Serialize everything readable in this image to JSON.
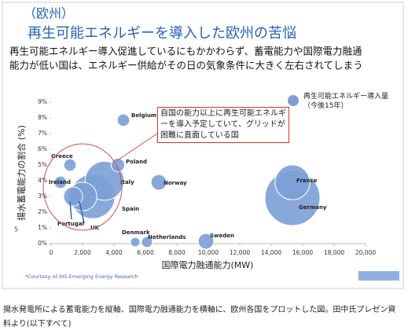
{
  "header": {
    "region": "（欧州）",
    "title": "再生可能エネルギーを導入した欧州の苦悩",
    "subtitle_lines": [
      "再生可能エネルギー導入促進しているにもかかわらず、蓄電能力や国際電力融通",
      "能力が低い国は、エネルギー供給がその日の気象条件に大きく左右されてしまう"
    ]
  },
  "chart_data": {
    "type": "bubble",
    "x_label": "国際電力融通能力(MW)",
    "y_label": "揚水蓄電能力の割合 (%)",
    "annotation": "自国の能力以上に再生可能エネルギーを導入予定していて、グリッドが困難に直面している国",
    "source": "*Courtesy of IHS Emerging Energy Research",
    "xlim": [
      0,
      20000
    ],
    "ylim": [
      0,
      9
    ],
    "xticks": [
      0,
      {
        "value": 2000,
        "label": "2,000"
      },
      {
        "value": 4000,
        "label": "4,000"
      },
      {
        "value": 6000,
        "label": "6,000"
      },
      {
        "value": 8000,
        "label": "8,000"
      },
      {
        "value": 10000,
        "label": "10,000"
      },
      {
        "value": 12000,
        "label": "12,000"
      },
      {
        "value": 14000,
        "label": "14,000"
      },
      {
        "value": 16000,
        "label": "16,000"
      },
      {
        "value": 18000,
        "label": "18,000"
      },
      {
        "value": 20000,
        "label": "20,000"
      }
    ],
    "yticks": [
      {
        "value": 0,
        "label": "0%"
      },
      {
        "value": 1,
        "label": "1%"
      },
      {
        "value": 2,
        "label": "2%"
      },
      {
        "value": 3,
        "label": "3%"
      },
      {
        "value": 4,
        "label": "4%"
      },
      {
        "value": 5,
        "label": "5%"
      },
      {
        "value": 6,
        "label": "6%"
      },
      {
        "value": 7,
        "label": "7%"
      },
      {
        "value": 8,
        "label": "8%"
      },
      {
        "value": 9,
        "label": "9%"
      }
    ],
    "series": [
      {
        "name": "再生可能エネルギー導入量（今後15年）",
        "color": "#7c9fd6",
        "labels": [
          "Germany",
          "Spain",
          "Italy",
          "France",
          "UK",
          "Portugal",
          "Norway",
          "Sweden",
          "Poland",
          "Belgium",
          "Greece",
          "Ireland",
          "Netherlands",
          "Denmark"
        ],
        "x": [
          15350,
          2650,
          3400,
          15350,
          2000,
          1400,
          6850,
          9850,
          4250,
          4600,
          1200,
          600,
          6100,
          5350
        ],
        "values": [
          2.9,
          3.0,
          4.0,
          3.9,
          3.0,
          3.0,
          3.9,
          0.15,
          5.0,
          7.85,
          5.0,
          3.9,
          0.1,
          0.1
        ],
        "sizes": [
          100,
          65,
          50,
          40,
          27,
          12,
          8,
          8,
          6,
          5,
          5,
          5,
          4,
          3
        ]
      }
    ]
  },
  "page_marker": "5",
  "caption": "揚水発電所による蓄電能力を縦軸、国際電力融通能力を横軸に、欧州各国をプロットした図。田中氏プレゼン資料より(以下すべて)"
}
